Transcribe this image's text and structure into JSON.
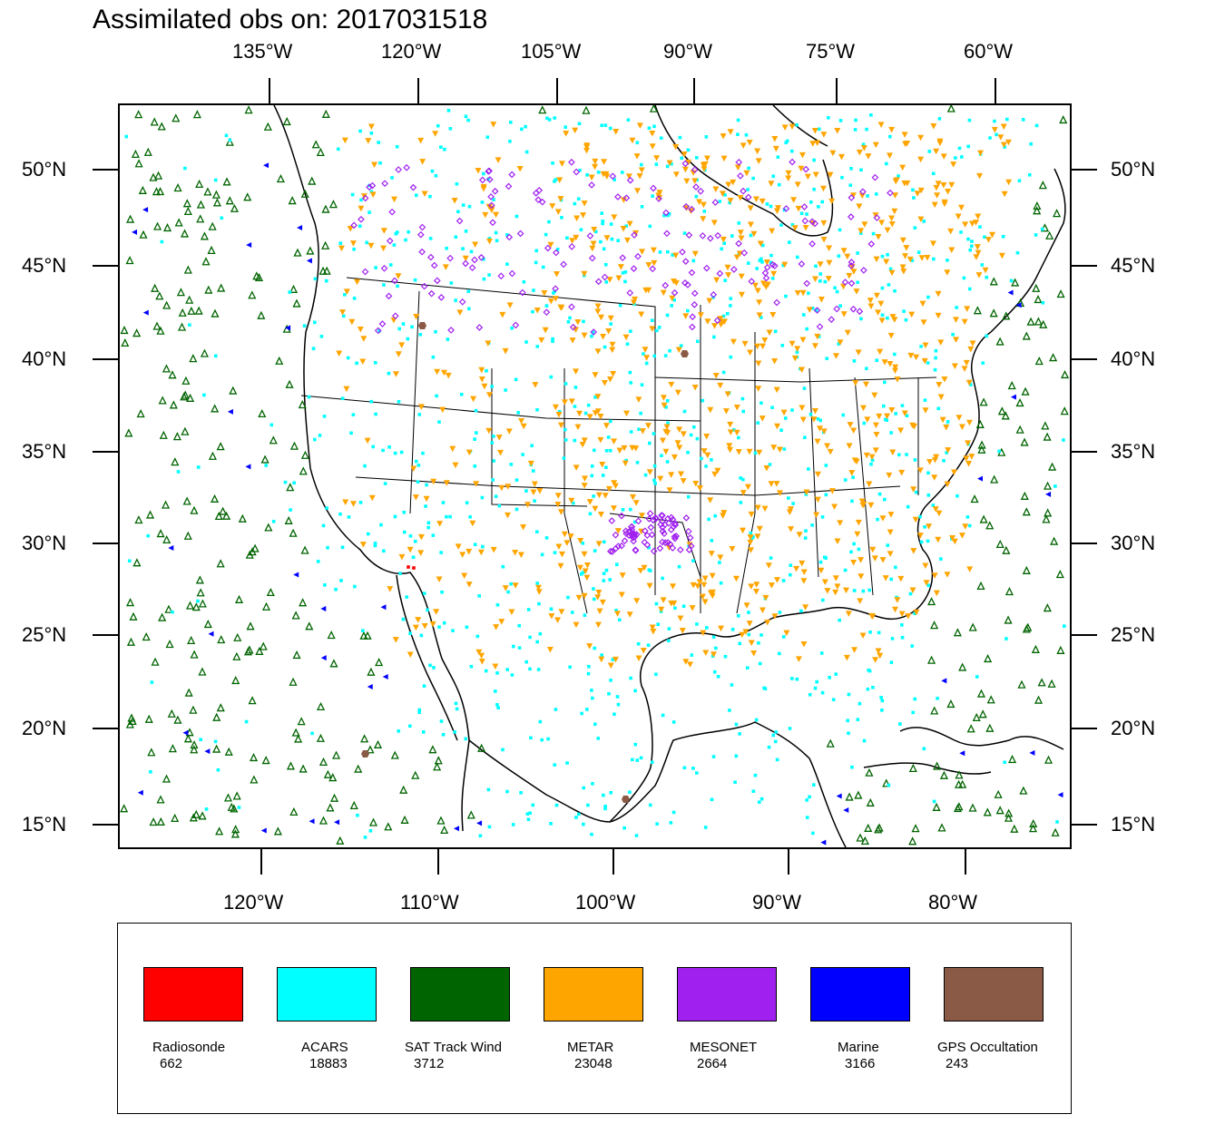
{
  "title": "Assimilated obs on: 2017031518",
  "top_lon_labels": [
    "135°W",
    "120°W",
    "105°W",
    "90°W",
    "75°W",
    "60°W"
  ],
  "bottom_lon_labels": [
    "120°W",
    "110°W",
    "100°W",
    "90°W",
    "80°W"
  ],
  "lat_labels": [
    "50°N",
    "45°N",
    "40°N",
    "35°N",
    "30°N",
    "25°N",
    "20°N",
    "15°N"
  ],
  "legend": [
    {
      "name": "Radiosonde",
      "count": "662",
      "color": "#ff0000"
    },
    {
      "name": "ACARS",
      "count": "18883",
      "color": "#00ffff"
    },
    {
      "name": "SAT Track Wind",
      "count": "3712",
      "color": "#006400"
    },
    {
      "name": "METAR",
      "count": "23048",
      "color": "#ffa500"
    },
    {
      "name": "MESONET",
      "count": "2664",
      "color": "#a020f0"
    },
    {
      "name": "Marine",
      "count": "3166",
      "color": "#0000ff"
    },
    {
      "name": "GPS Occultation",
      "count": "243",
      "color": "#8b5a46"
    }
  ]
}
